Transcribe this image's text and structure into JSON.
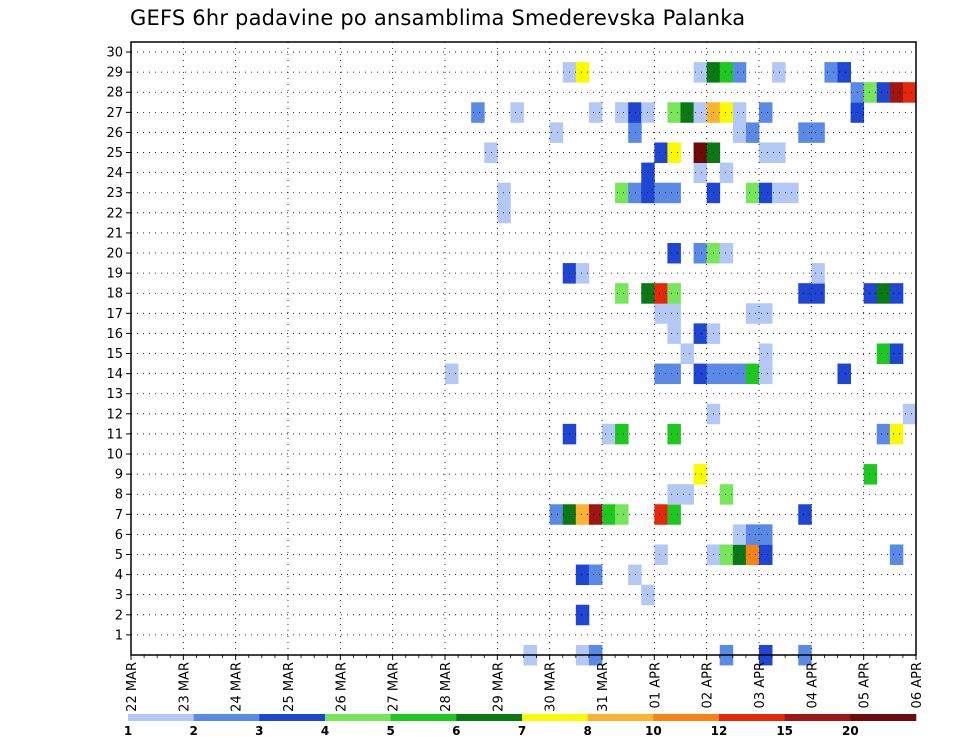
{
  "chart_data": {
    "type": "heatmap",
    "title": "GEFS 6hr padavine po ansamblima Smederevska Palanka",
    "x_tick_labels": [
      "22 MAR",
      "23 MAR",
      "24 MAR",
      "25 MAR",
      "26 MAR",
      "27 MAR",
      "28 MAR",
      "29 MAR",
      "30 MAR",
      "31 MAR",
      "01 APR",
      "02 APR",
      "03 APR",
      "04 APR",
      "05 APR",
      "06 APR"
    ],
    "y_tick_labels": [
      "1",
      "2",
      "3",
      "4",
      "5",
      "6",
      "7",
      "8",
      "9",
      "10",
      "11",
      "12",
      "13",
      "14",
      "15",
      "16",
      "17",
      "18",
      "19",
      "20",
      "21",
      "22",
      "23",
      "24",
      "25",
      "26",
      "27",
      "28",
      "29",
      "30"
    ],
    "y_range": [
      0,
      30
    ],
    "time_steps": 60,
    "grid": true,
    "colorbar": {
      "levels": [
        1,
        2,
        3,
        4,
        5,
        6,
        7,
        8,
        10,
        12,
        15,
        20
      ],
      "colors": [
        "#b4c8f5",
        "#5a8ae6",
        "#1e46d2",
        "#78e65a",
        "#1ec81e",
        "#0a7814",
        "#fafa00",
        "#fab432",
        "#fa8214",
        "#e6280a",
        "#a01414",
        "#6e0a0a"
      ]
    },
    "cells": [
      {
        "member": 0,
        "step": 30,
        "cls": 1
      },
      {
        "member": 0,
        "step": 34,
        "cls": 1
      },
      {
        "member": 0,
        "step": 35,
        "cls": 2
      },
      {
        "member": 0,
        "step": 45,
        "cls": 2
      },
      {
        "member": 0,
        "step": 48,
        "cls": 3
      },
      {
        "member": 0,
        "step": 51,
        "cls": 2
      },
      {
        "member": 2,
        "step": 34,
        "cls": 3
      },
      {
        "member": 3,
        "step": 39,
        "cls": 1
      },
      {
        "member": 4,
        "step": 34,
        "cls": 3
      },
      {
        "member": 4,
        "step": 35,
        "cls": 2
      },
      {
        "member": 4,
        "step": 38,
        "cls": 1
      },
      {
        "member": 5,
        "step": 40,
        "cls": 1
      },
      {
        "member": 5,
        "step": 44,
        "cls": 1
      },
      {
        "member": 5,
        "step": 45,
        "cls": 4
      },
      {
        "member": 5,
        "step": 46,
        "cls": 6
      },
      {
        "member": 5,
        "step": 47,
        "cls": 9
      },
      {
        "member": 5,
        "step": 48,
        "cls": 3
      },
      {
        "member": 5,
        "step": 58,
        "cls": 2
      },
      {
        "member": 6,
        "step": 46,
        "cls": 1
      },
      {
        "member": 6,
        "step": 47,
        "cls": 2
      },
      {
        "member": 6,
        "step": 48,
        "cls": 2
      },
      {
        "member": 7,
        "step": 32,
        "cls": 2
      },
      {
        "member": 7,
        "step": 33,
        "cls": 6
      },
      {
        "member": 7,
        "step": 34,
        "cls": 8
      },
      {
        "member": 7,
        "step": 35,
        "cls": 11
      },
      {
        "member": 7,
        "step": 36,
        "cls": 5
      },
      {
        "member": 7,
        "step": 37,
        "cls": 4
      },
      {
        "member": 7,
        "step": 40,
        "cls": 10
      },
      {
        "member": 7,
        "step": 41,
        "cls": 5
      },
      {
        "member": 7,
        "step": 51,
        "cls": 3
      },
      {
        "member": 8,
        "step": 41,
        "cls": 1
      },
      {
        "member": 8,
        "step": 42,
        "cls": 1
      },
      {
        "member": 8,
        "step": 45,
        "cls": 4
      },
      {
        "member": 9,
        "step": 43,
        "cls": 7
      },
      {
        "member": 9,
        "step": 56,
        "cls": 5
      },
      {
        "member": 11,
        "step": 33,
        "cls": 3
      },
      {
        "member": 11,
        "step": 36,
        "cls": 1
      },
      {
        "member": 11,
        "step": 37,
        "cls": 5
      },
      {
        "member": 11,
        "step": 41,
        "cls": 5
      },
      {
        "member": 11,
        "step": 57,
        "cls": 2
      },
      {
        "member": 11,
        "step": 58,
        "cls": 7
      },
      {
        "member": 12,
        "step": 44,
        "cls": 1
      },
      {
        "member": 12,
        "step": 59,
        "cls": 1
      },
      {
        "member": 14,
        "step": 24,
        "cls": 1
      },
      {
        "member": 14,
        "step": 40,
        "cls": 2
      },
      {
        "member": 14,
        "step": 41,
        "cls": 2
      },
      {
        "member": 14,
        "step": 43,
        "cls": 3
      },
      {
        "member": 14,
        "step": 44,
        "cls": 2
      },
      {
        "member": 14,
        "step": 45,
        "cls": 2
      },
      {
        "member": 14,
        "step": 46,
        "cls": 2
      },
      {
        "member": 14,
        "step": 47,
        "cls": 5
      },
      {
        "member": 14,
        "step": 48,
        "cls": 1
      },
      {
        "member": 14,
        "step": 54,
        "cls": 3
      },
      {
        "member": 15,
        "step": 42,
        "cls": 1
      },
      {
        "member": 15,
        "step": 48,
        "cls": 1
      },
      {
        "member": 15,
        "step": 57,
        "cls": 5
      },
      {
        "member": 15,
        "step": 58,
        "cls": 3
      },
      {
        "member": 16,
        "step": 41,
        "cls": 1
      },
      {
        "member": 16,
        "step": 43,
        "cls": 3
      },
      {
        "member": 16,
        "step": 44,
        "cls": 1
      },
      {
        "member": 17,
        "step": 40,
        "cls": 1
      },
      {
        "member": 17,
        "step": 41,
        "cls": 1
      },
      {
        "member": 17,
        "step": 47,
        "cls": 1
      },
      {
        "member": 17,
        "step": 48,
        "cls": 1
      },
      {
        "member": 18,
        "step": 37,
        "cls": 4
      },
      {
        "member": 18,
        "step": 39,
        "cls": 6
      },
      {
        "member": 18,
        "step": 40,
        "cls": 10
      },
      {
        "member": 18,
        "step": 41,
        "cls": 4
      },
      {
        "member": 18,
        "step": 51,
        "cls": 3
      },
      {
        "member": 18,
        "step": 52,
        "cls": 3
      },
      {
        "member": 18,
        "step": 56,
        "cls": 3
      },
      {
        "member": 18,
        "step": 57,
        "cls": 6
      },
      {
        "member": 18,
        "step": 58,
        "cls": 3
      },
      {
        "member": 19,
        "step": 33,
        "cls": 3
      },
      {
        "member": 19,
        "step": 34,
        "cls": 1
      },
      {
        "member": 19,
        "step": 52,
        "cls": 1
      },
      {
        "member": 20,
        "step": 41,
        "cls": 3
      },
      {
        "member": 20,
        "step": 43,
        "cls": 2
      },
      {
        "member": 20,
        "step": 44,
        "cls": 4
      },
      {
        "member": 20,
        "step": 45,
        "cls": 1
      },
      {
        "member": 22,
        "step": 28,
        "cls": 1
      },
      {
        "member": 23,
        "step": 28,
        "cls": 1
      },
      {
        "member": 23,
        "step": 37,
        "cls": 4
      },
      {
        "member": 23,
        "step": 38,
        "cls": 2
      },
      {
        "member": 23,
        "step": 39,
        "cls": 3
      },
      {
        "member": 23,
        "step": 40,
        "cls": 2
      },
      {
        "member": 23,
        "step": 41,
        "cls": 2
      },
      {
        "member": 23,
        "step": 44,
        "cls": 3
      },
      {
        "member": 23,
        "step": 47,
        "cls": 4
      },
      {
        "member": 23,
        "step": 48,
        "cls": 3
      },
      {
        "member": 23,
        "step": 49,
        "cls": 1
      },
      {
        "member": 23,
        "step": 50,
        "cls": 1
      },
      {
        "member": 24,
        "step": 39,
        "cls": 3
      },
      {
        "member": 24,
        "step": 43,
        "cls": 1
      },
      {
        "member": 24,
        "step": 45,
        "cls": 1
      },
      {
        "member": 25,
        "step": 27,
        "cls": 1
      },
      {
        "member": 25,
        "step": 40,
        "cls": 3
      },
      {
        "member": 25,
        "step": 41,
        "cls": 7
      },
      {
        "member": 25,
        "step": 43,
        "cls": 12
      },
      {
        "member": 25,
        "step": 44,
        "cls": 6
      },
      {
        "member": 25,
        "step": 48,
        "cls": 1
      },
      {
        "member": 25,
        "step": 49,
        "cls": 1
      },
      {
        "member": 26,
        "step": 32,
        "cls": 1
      },
      {
        "member": 26,
        "step": 38,
        "cls": 2
      },
      {
        "member": 26,
        "step": 46,
        "cls": 1
      },
      {
        "member": 26,
        "step": 47,
        "cls": 2
      },
      {
        "member": 26,
        "step": 51,
        "cls": 2
      },
      {
        "member": 26,
        "step": 52,
        "cls": 2
      },
      {
        "member": 27,
        "step": 26,
        "cls": 2
      },
      {
        "member": 27,
        "step": 29,
        "cls": 1
      },
      {
        "member": 27,
        "step": 35,
        "cls": 1
      },
      {
        "member": 27,
        "step": 37,
        "cls": 1
      },
      {
        "member": 27,
        "step": 38,
        "cls": 3
      },
      {
        "member": 27,
        "step": 39,
        "cls": 1
      },
      {
        "member": 27,
        "step": 41,
        "cls": 4
      },
      {
        "member": 27,
        "step": 42,
        "cls": 6
      },
      {
        "member": 27,
        "step": 43,
        "cls": 1
      },
      {
        "member": 27,
        "step": 44,
        "cls": 8
      },
      {
        "member": 27,
        "step": 45,
        "cls": 7
      },
      {
        "member": 27,
        "step": 46,
        "cls": 1
      },
      {
        "member": 27,
        "step": 48,
        "cls": 2
      },
      {
        "member": 27,
        "step": 55,
        "cls": 3
      },
      {
        "member": 28,
        "step": 55,
        "cls": 2
      },
      {
        "member": 28,
        "step": 56,
        "cls": 4
      },
      {
        "member": 28,
        "step": 57,
        "cls": 3
      },
      {
        "member": 28,
        "step": 58,
        "cls": 11
      },
      {
        "member": 28,
        "step": 59,
        "cls": 10
      },
      {
        "member": 29,
        "step": 33,
        "cls": 1
      },
      {
        "member": 29,
        "step": 34,
        "cls": 7
      },
      {
        "member": 29,
        "step": 43,
        "cls": 1
      },
      {
        "member": 29,
        "step": 44,
        "cls": 6
      },
      {
        "member": 29,
        "step": 45,
        "cls": 5
      },
      {
        "member": 29,
        "step": 46,
        "cls": 2
      },
      {
        "member": 29,
        "step": 49,
        "cls": 1
      },
      {
        "member": 29,
        "step": 53,
        "cls": 2
      },
      {
        "member": 29,
        "step": 54,
        "cls": 3
      }
    ]
  }
}
